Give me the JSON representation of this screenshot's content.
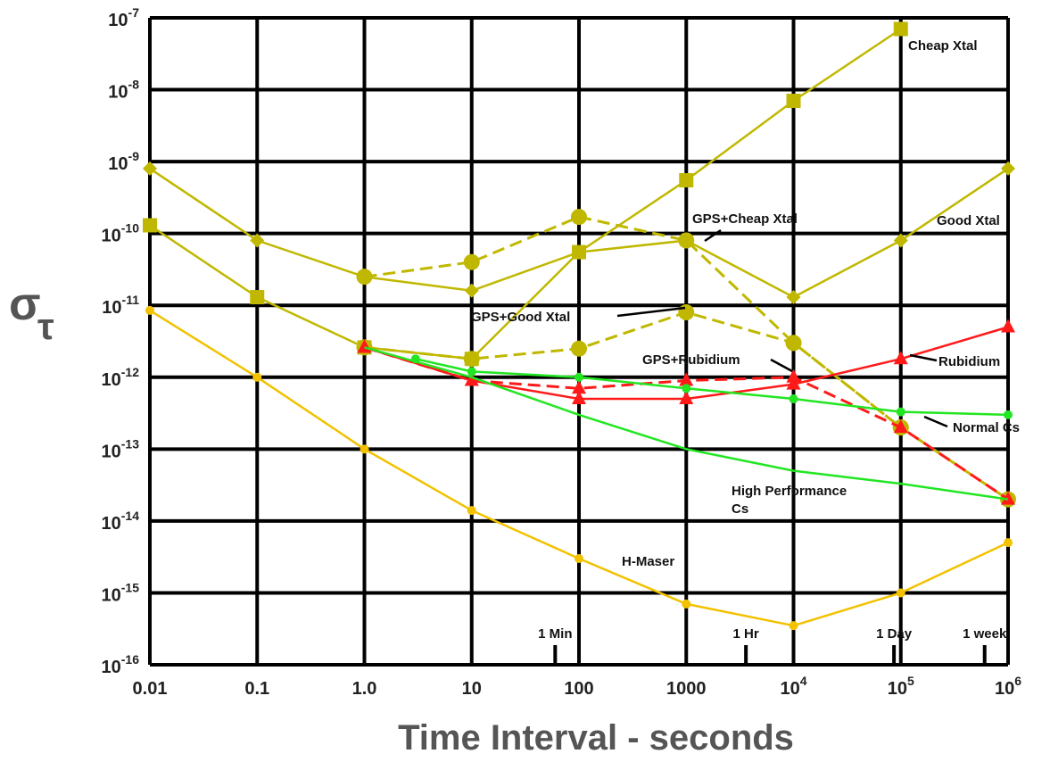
{
  "chart_data": {
    "type": "line",
    "title": "",
    "xlabel": "Time Interval - seconds",
    "ylabel_symbol": "σ",
    "ylabel_subscript": "τ",
    "x_scale": "log",
    "y_scale": "log",
    "xlim": [
      0.01,
      1000000
    ],
    "ylim": [
      1e-16,
      1e-07
    ],
    "grid": true,
    "colors": {
      "yellow_green": "#c0b800",
      "green": "#22e622",
      "red": "#ff1a1a",
      "gold": "#f2c200",
      "grid": "#000000"
    },
    "x_ticks": [
      {
        "v": 0.01,
        "base": "0.01",
        "exp": ""
      },
      {
        "v": 0.1,
        "base": "0.1",
        "exp": ""
      },
      {
        "v": 1,
        "base": "1.0",
        "exp": ""
      },
      {
        "v": 10,
        "base": "10",
        "exp": ""
      },
      {
        "v": 100,
        "base": "100",
        "exp": ""
      },
      {
        "v": 1000,
        "base": "1000",
        "exp": ""
      },
      {
        "v": 10000,
        "base": "10",
        "exp": "4"
      },
      {
        "v": 100000,
        "base": "10",
        "exp": "5"
      },
      {
        "v": 1000000,
        "base": "10",
        "exp": "6"
      }
    ],
    "y_ticks": [
      {
        "v": 1e-07,
        "base": "10",
        "exp": "-7"
      },
      {
        "v": 1e-08,
        "base": "10",
        "exp": "-8"
      },
      {
        "v": 1e-09,
        "base": "10",
        "exp": "-9"
      },
      {
        "v": 1e-10,
        "base": "10",
        "exp": "-10"
      },
      {
        "v": 1e-11,
        "base": "10",
        "exp": "-11"
      },
      {
        "v": 1e-12,
        "base": "10",
        "exp": "-12"
      },
      {
        "v": 1e-13,
        "base": "10",
        "exp": "-13"
      },
      {
        "v": 1e-14,
        "base": "10",
        "exp": "-14"
      },
      {
        "v": 1e-15,
        "base": "10",
        "exp": "-15"
      },
      {
        "v": 1e-16,
        "base": "10",
        "exp": "-16"
      }
    ],
    "time_markers": [
      {
        "label": "1 Min",
        "x": 60
      },
      {
        "label": "1 Hr",
        "x": 3600
      },
      {
        "label": "1 Day",
        "x": 86400
      },
      {
        "label": "1 week",
        "x": 604800
      }
    ],
    "series": [
      {
        "name": "Cheap Xtal",
        "color": "#c0b800",
        "dash": false,
        "marker": "square",
        "x": [
          0.01,
          0.1,
          1,
          10,
          100,
          1000,
          10000,
          100000
        ],
        "y": [
          1.3e-10,
          1.3e-11,
          2.6e-12,
          1.8e-12,
          5.5e-11,
          5.5e-10,
          7e-09,
          7e-08
        ]
      },
      {
        "name": "Good  Xtal",
        "color": "#c0b800",
        "dash": false,
        "marker": "diamond",
        "x": [
          0.01,
          0.1,
          1,
          10,
          100,
          1000,
          10000,
          100000,
          1000000
        ],
        "y": [
          8e-10,
          8e-11,
          2.5e-11,
          1.6e-11,
          5.5e-11,
          8e-11,
          1.3e-11,
          8e-11,
          8e-10
        ]
      },
      {
        "name": "GPS+Cheap Xtal",
        "color": "#c0b800",
        "dash": true,
        "marker": "circle",
        "x": [
          1,
          10,
          100,
          1000,
          10000,
          100000,
          1000000
        ],
        "y": [
          2.5e-11,
          4e-11,
          1.7e-10,
          8e-11,
          3e-12,
          2e-13,
          2e-14
        ]
      },
      {
        "name": "GPS+Good  Xtal",
        "color": "#c0b800",
        "dash": true,
        "marker": "circle",
        "x": [
          1,
          10,
          100,
          1000,
          10000,
          100000
        ],
        "y": [
          2.6e-12,
          1.8e-12,
          2.5e-12,
          8e-12,
          3e-12,
          2e-13
        ]
      },
      {
        "name": "GPS+Rubidium",
        "color": "#ff1a1a",
        "dash": true,
        "marker": "triangle",
        "x": [
          1,
          10,
          100,
          1000,
          10000,
          100000,
          1000000
        ],
        "y": [
          2.6e-12,
          9e-13,
          7e-13,
          9e-13,
          1e-12,
          2e-13,
          2e-14
        ]
      },
      {
        "name": "Rubidium",
        "color": "#ff1a1a",
        "dash": false,
        "marker": "triangle",
        "x": [
          1,
          10,
          100,
          1000,
          10000,
          100000,
          1000000
        ],
        "y": [
          2.6e-12,
          9e-13,
          5e-13,
          5e-13,
          8e-13,
          1.8e-12,
          5e-12
        ]
      },
      {
        "name": "Normal Cs",
        "color": "#22e622",
        "dash": false,
        "marker": "circle",
        "x": [
          3,
          10,
          100,
          1000,
          10000,
          100000,
          1000000
        ],
        "y": [
          1.8e-12,
          1.2e-12,
          1e-12,
          7e-13,
          5e-13,
          3.3e-13,
          3e-13
        ]
      },
      {
        "name": "High Performance\nCs",
        "color": "#22e622",
        "dash": false,
        "marker": "none",
        "x": [
          1,
          10,
          100,
          1000,
          10000,
          100000,
          1000000
        ],
        "y": [
          2.6e-12,
          1e-12,
          3e-13,
          1e-13,
          5e-14,
          3.3e-14,
          2e-14
        ]
      },
      {
        "name": "H-Maser",
        "color": "#f2c200",
        "dash": false,
        "marker": "circle",
        "x": [
          0.01,
          0.1,
          1,
          10,
          100,
          1000,
          10000,
          100000,
          1000000
        ],
        "y": [
          8.5e-12,
          1e-12,
          1e-13,
          1.4e-14,
          3e-15,
          7e-16,
          3.5e-16,
          1e-15,
          5e-15
        ]
      }
    ]
  }
}
